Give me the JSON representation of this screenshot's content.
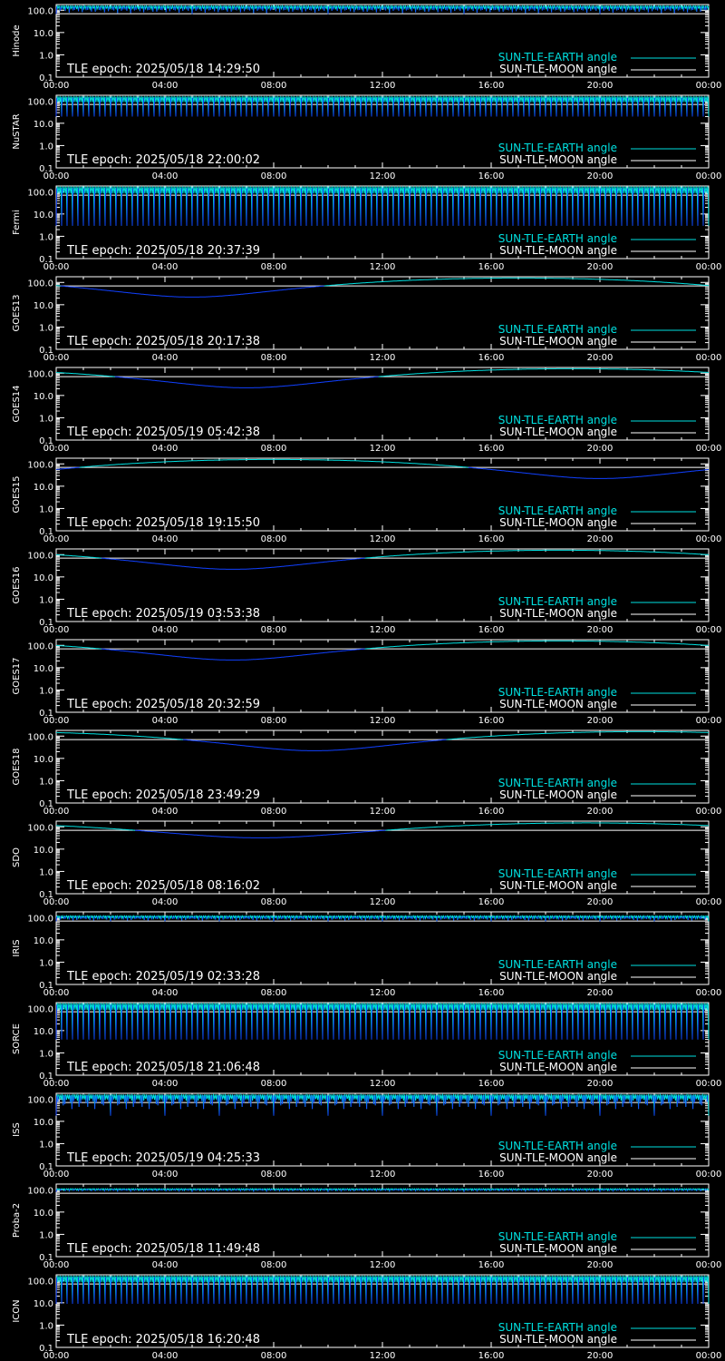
{
  "x_ticks": [
    "00:00",
    "04:00",
    "08:00",
    "12:00",
    "16:00",
    "20:00",
    "00:00"
  ],
  "y_ticks": [
    "0.1",
    "1.0",
    "10.0",
    "100.0"
  ],
  "y_axis_scale": "log",
  "y_range": [
    0.1,
    180
  ],
  "legend": {
    "earth": "SUN-TLE-EARTH angle",
    "moon": "SUN-TLE-MOON angle"
  },
  "colors": {
    "background": "#000000",
    "axes": "#ffffff",
    "moon_line": "#ffffff",
    "earth_legend": "#00e0e0",
    "earth_sunlit": "#00e0e0",
    "earth_eclipse": "#1040ff"
  },
  "panels": [
    {
      "name": "Hinode",
      "epoch_label": "TLE epoch: 2025/05/18 14:29:50",
      "chart_data": {
        "type": "line",
        "model": "leo",
        "orbits": 14.6,
        "min_deg": 68,
        "max_deg": 158,
        "moon_deg": 70,
        "xlim": [
          0,
          24
        ],
        "ylim": [
          0.1,
          180
        ]
      }
    },
    {
      "name": "NuSTAR",
      "epoch_label": "TLE epoch: 2025/05/18 22:00:02",
      "chart_data": {
        "type": "line",
        "model": "leo",
        "orbits": 15.0,
        "min_deg": 20,
        "max_deg": 158,
        "moon_deg": 70,
        "xlim": [
          0,
          24
        ],
        "ylim": [
          0.1,
          180
        ]
      }
    },
    {
      "name": "Fermi",
      "epoch_label": "TLE epoch: 2025/05/18 20:37:39",
      "chart_data": {
        "type": "line",
        "model": "leo",
        "orbits": 15.0,
        "min_deg": 3,
        "max_deg": 165,
        "moon_deg": 70,
        "xlim": [
          0,
          24
        ],
        "ylim": [
          0.1,
          180
        ]
      }
    },
    {
      "name": "GOES13",
      "epoch_label": "TLE epoch: 2025/05/18 20:17:38",
      "chart_data": {
        "type": "line",
        "model": "geo",
        "min_deg": 22,
        "min_hour": 5.0,
        "max_deg": 158,
        "moon_deg": 70,
        "xlim": [
          0,
          24
        ],
        "ylim": [
          0.1,
          180
        ]
      }
    },
    {
      "name": "GOES14",
      "epoch_label": "TLE epoch: 2025/05/19 05:42:38",
      "chart_data": {
        "type": "line",
        "model": "geo",
        "min_deg": 22,
        "min_hour": 7.0,
        "max_deg": 158,
        "moon_deg": 70,
        "xlim": [
          0,
          24
        ],
        "ylim": [
          0.1,
          180
        ]
      }
    },
    {
      "name": "GOES15",
      "epoch_label": "TLE epoch: 2025/05/18 19:15:50",
      "chart_data": {
        "type": "line",
        "model": "geo",
        "min_deg": 22,
        "min_hour": 20.0,
        "max_deg": 158,
        "moon_deg": 70,
        "xlim": [
          0,
          24
        ],
        "ylim": [
          0.1,
          180
        ]
      }
    },
    {
      "name": "GOES16",
      "epoch_label": "TLE epoch: 2025/05/19 03:53:38",
      "chart_data": {
        "type": "line",
        "model": "geo",
        "min_deg": 22,
        "min_hour": 6.5,
        "max_deg": 158,
        "moon_deg": 70,
        "xlim": [
          0,
          24
        ],
        "ylim": [
          0.1,
          180
        ]
      }
    },
    {
      "name": "GOES17",
      "epoch_label": "TLE epoch: 2025/05/18 20:32:59",
      "chart_data": {
        "type": "line",
        "model": "geo",
        "min_deg": 22,
        "min_hour": 6.5,
        "max_deg": 158,
        "moon_deg": 70,
        "xlim": [
          0,
          24
        ],
        "ylim": [
          0.1,
          180
        ]
      }
    },
    {
      "name": "GOES18",
      "epoch_label": "TLE epoch: 2025/05/18 23:49:29",
      "chart_data": {
        "type": "line",
        "model": "geo",
        "min_deg": 22,
        "min_hour": 9.5,
        "max_deg": 158,
        "moon_deg": 70,
        "xlim": [
          0,
          24
        ],
        "ylim": [
          0.1,
          180
        ]
      }
    },
    {
      "name": "SDO",
      "epoch_label": "TLE epoch: 2025/05/18 08:16:02",
      "chart_data": {
        "type": "line",
        "model": "geo",
        "min_deg": 32,
        "min_hour": 7.5,
        "max_deg": 150,
        "moon_deg": 70,
        "xlim": [
          0,
          24
        ],
        "ylim": [
          0.1,
          180
        ]
      }
    },
    {
      "name": "IRIS",
      "epoch_label": "TLE epoch: 2025/05/19 02:33:28",
      "chart_data": {
        "type": "line",
        "model": "leo",
        "orbits": 14.5,
        "min_deg": 68,
        "max_deg": 120,
        "moon_deg": 70,
        "xlim": [
          0,
          24
        ],
        "ylim": [
          0.1,
          180
        ]
      }
    },
    {
      "name": "SORCE",
      "epoch_label": "TLE epoch: 2025/05/18 21:06:48",
      "chart_data": {
        "type": "line",
        "model": "leo",
        "orbits": 15.0,
        "min_deg": 4,
        "max_deg": 165,
        "moon_deg": 70,
        "xlim": [
          0,
          24
        ],
        "ylim": [
          0.1,
          180
        ]
      }
    },
    {
      "name": "ISS",
      "epoch_label": "TLE epoch: 2025/05/19 04:25:33",
      "chart_data": {
        "type": "line",
        "model": "leo",
        "orbits": 15.5,
        "min_deg": 18,
        "max_deg": 160,
        "moon_deg": 70,
        "xlim": [
          0,
          24
        ],
        "ylim": [
          0.1,
          180
        ]
      }
    },
    {
      "name": "Proba-2",
      "epoch_label": "TLE epoch: 2025/05/18 11:49:48",
      "chart_data": {
        "type": "line",
        "model": "leo",
        "orbits": 14.6,
        "min_deg": 80,
        "max_deg": 112,
        "moon_deg": 70,
        "xlim": [
          0,
          24
        ],
        "ylim": [
          0.1,
          180
        ]
      }
    },
    {
      "name": "ICON",
      "epoch_label": "TLE epoch: 2025/05/18 16:20:48",
      "chart_data": {
        "type": "line",
        "model": "leo",
        "orbits": 15.0,
        "min_deg": 9,
        "max_deg": 160,
        "moon_deg": 70,
        "xlim": [
          0,
          24
        ],
        "ylim": [
          0.1,
          180
        ]
      }
    }
  ]
}
